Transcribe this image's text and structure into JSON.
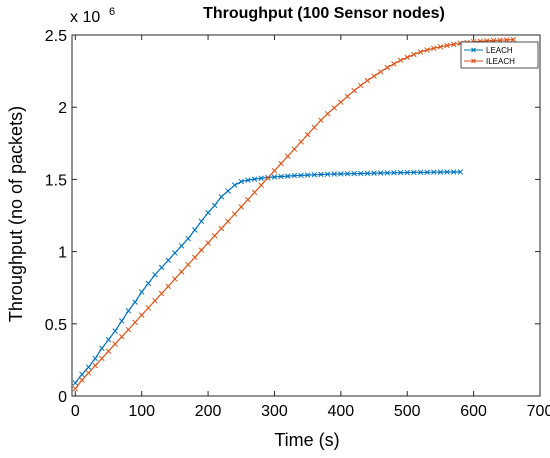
{
  "chart_data": {
    "type": "line",
    "title": "Throughput (100 Sensor nodes)",
    "xlabel": "Time (s)",
    "ylabel": "Throughput (no of packets)",
    "xlim": [
      -5,
      700
    ],
    "ylim": [
      0,
      2500000
    ],
    "xticks": [
      0,
      100,
      200,
      300,
      400,
      500,
      600,
      700
    ],
    "xtick_labels": [
      "0",
      "100",
      "200",
      "300",
      "400",
      "500",
      "600",
      "700"
    ],
    "yticks": [
      0,
      500000,
      1000000,
      1500000,
      2000000,
      2500000
    ],
    "ytick_labels": [
      "0",
      "0.5",
      "1",
      "1.5",
      "2",
      "2.5"
    ],
    "y_exponent_base": "x 10",
    "y_exponent_power": "6",
    "grid": false,
    "legend_placement": "top-right",
    "series": [
      {
        "name": "LEACH",
        "color": "#0072BD",
        "marker": "x",
        "x": [
          0,
          10,
          20,
          30,
          40,
          50,
          60,
          70,
          80,
          90,
          100,
          110,
          120,
          130,
          140,
          150,
          160,
          170,
          180,
          190,
          200,
          210,
          220,
          230,
          240,
          250,
          260,
          270,
          280,
          290,
          300,
          310,
          320,
          330,
          340,
          350,
          360,
          370,
          380,
          390,
          400,
          410,
          420,
          430,
          440,
          450,
          460,
          470,
          480,
          490,
          500,
          510,
          520,
          530,
          540,
          550,
          560,
          570,
          580
        ],
        "y": [
          90000,
          150000,
          200000,
          260000,
          330000,
          390000,
          450000,
          520000,
          590000,
          650000,
          720000,
          780000,
          840000,
          890000,
          940000,
          990000,
          1040000,
          1090000,
          1150000,
          1210000,
          1270000,
          1320000,
          1380000,
          1420000,
          1460000,
          1485000,
          1495000,
          1502000,
          1508000,
          1513000,
          1517000,
          1520000,
          1523000,
          1526000,
          1528000,
          1530000,
          1532000,
          1534000,
          1536000,
          1537000,
          1538000,
          1539000,
          1540000,
          1541000,
          1542000,
          1543000,
          1544000,
          1545000,
          1546000,
          1547000,
          1548000,
          1548500,
          1549000,
          1549500,
          1550000,
          1550500,
          1551000,
          1551500,
          1552000
        ]
      },
      {
        "name": "ILEACH",
        "color": "#D95319",
        "marker": "x",
        "x": [
          0,
          10,
          20,
          30,
          40,
          50,
          60,
          70,
          80,
          90,
          100,
          110,
          120,
          130,
          140,
          150,
          160,
          170,
          180,
          190,
          200,
          210,
          220,
          230,
          240,
          250,
          260,
          270,
          280,
          290,
          300,
          310,
          320,
          330,
          340,
          350,
          360,
          370,
          380,
          390,
          400,
          410,
          420,
          430,
          440,
          450,
          460,
          470,
          480,
          490,
          500,
          510,
          520,
          530,
          540,
          550,
          560,
          570,
          580,
          590,
          600,
          610,
          620,
          630,
          640,
          650,
          660
        ],
        "y": [
          50000,
          110000,
          160000,
          210000,
          260000,
          310000,
          360000,
          410000,
          460000,
          510000,
          560000,
          610000,
          660000,
          710000,
          760000,
          810000,
          860000,
          910000,
          960000,
          1010000,
          1060000,
          1110000,
          1160000,
          1210000,
          1260000,
          1310000,
          1360000,
          1410000,
          1460000,
          1510000,
          1560000,
          1610000,
          1660000,
          1710000,
          1760000,
          1810000,
          1860000,
          1910000,
          1955000,
          1995000,
          2035000,
          2075000,
          2115000,
          2150000,
          2185000,
          2215000,
          2245000,
          2275000,
          2300000,
          2325000,
          2345000,
          2365000,
          2382000,
          2396000,
          2408000,
          2418000,
          2427000,
          2435000,
          2442000,
          2448000,
          2453000,
          2457000,
          2460000,
          2462000,
          2464000,
          2466000,
          2468000
        ]
      }
    ]
  }
}
